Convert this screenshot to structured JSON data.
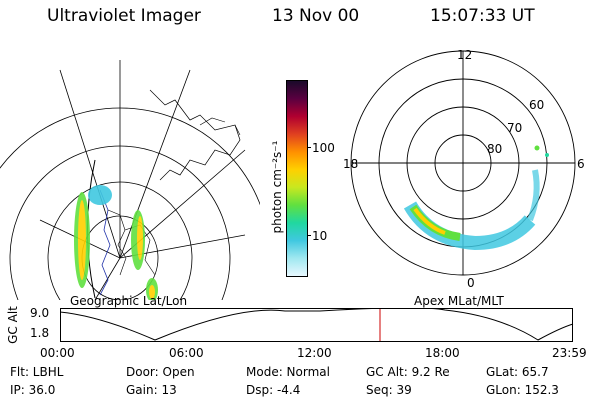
{
  "header": {
    "instrument": "Ultraviolet Imager",
    "date": "13 Nov 00",
    "time": "15:07:33 UT"
  },
  "geo_panel": {
    "label": "Geographic Lat/Lon"
  },
  "polar_panel": {
    "label": "Apex MLat/MLT",
    "mlt_labels": [
      "12",
      "18",
      "6",
      "0"
    ],
    "lat_labels": [
      "60",
      "70",
      "80"
    ]
  },
  "colorbar": {
    "unit_label": "photon cm⁻²s⁻¹",
    "tick_labels": [
      "100",
      "10"
    ],
    "colors": [
      "#1a0a2a",
      "#5a0040",
      "#b00030",
      "#e04020",
      "#ff9000",
      "#ffd000",
      "#c8e820",
      "#60e040",
      "#20d8a0",
      "#40c8e0",
      "#a0e8f0",
      "#e8f8ff"
    ]
  },
  "timeline": {
    "axis_label": "GC Alt",
    "y_tick_labels": [
      "9.0",
      "1.8"
    ],
    "x_tick_labels": [
      "00:00",
      "06:00",
      "12:00",
      "18:00",
      "23:59"
    ],
    "current_time_color": "#cc0000"
  },
  "info": {
    "flt": "Flt: LBHL",
    "ip": "IP: 36.0",
    "door": "Door: Open",
    "gain": "Gain: 13",
    "mode": "Mode: Normal",
    "dsp": "Dsp:   -4.4",
    "gc_alt": "GC Alt: 9.2 Re",
    "seq": "Seq: 39",
    "glat": "GLat:  65.7",
    "glon": "GLon: 152.3"
  }
}
